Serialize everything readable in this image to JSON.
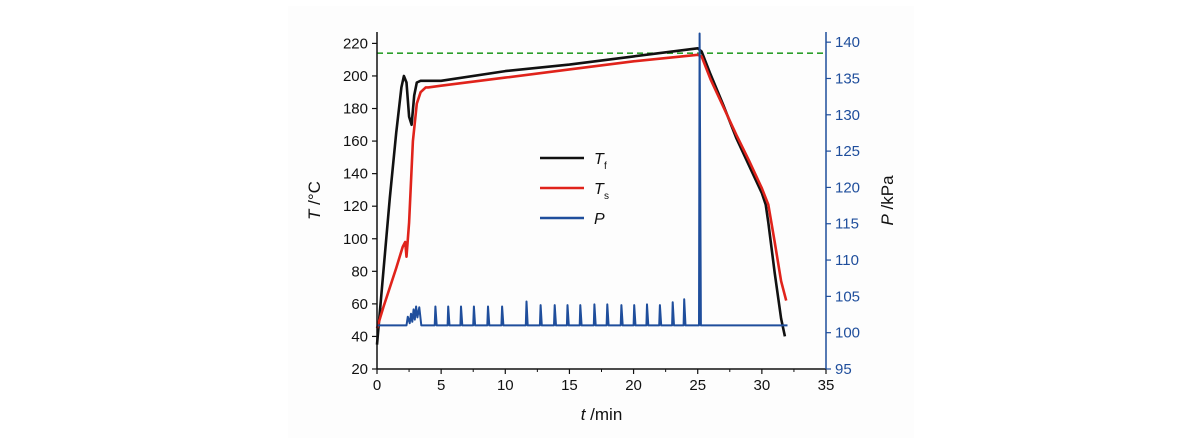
{
  "chart_data": {
    "type": "line",
    "title": "",
    "x_axis": {
      "label_var": "t",
      "label_unit": "/min",
      "range": [
        0,
        35
      ],
      "ticks": [
        0,
        5,
        10,
        15,
        20,
        25,
        30,
        35
      ]
    },
    "y_left": {
      "label_var": "T",
      "label_unit": "/°C",
      "range": [
        20,
        227
      ],
      "ticks": [
        20,
        40,
        60,
        80,
        100,
        120,
        140,
        160,
        180,
        200,
        220
      ]
    },
    "y_right": {
      "label_var": "P",
      "label_unit": "/kPa",
      "range": [
        95,
        141.4
      ],
      "ticks": [
        95,
        100,
        105,
        110,
        115,
        120,
        125,
        130,
        135,
        140
      ],
      "color": "#1f4e9c"
    },
    "reference_line": {
      "axis": "left",
      "y": 214,
      "color": "#2ca02c",
      "style": "dashed"
    },
    "legend": {
      "placement": "center",
      "entries": [
        {
          "var": "T",
          "sub": "f",
          "color": "#111111"
        },
        {
          "var": "T",
          "sub": "s",
          "color": "#e0231b"
        },
        {
          "var": "P",
          "sub": "",
          "color": "#1f4e9c"
        }
      ]
    },
    "series": [
      {
        "name": "Tf",
        "axis": "left",
        "color": "#111111",
        "points": [
          [
            0,
            35
          ],
          [
            0.5,
            80
          ],
          [
            1,
            125
          ],
          [
            1.5,
            165
          ],
          [
            1.9,
            193
          ],
          [
            2.1,
            200
          ],
          [
            2.3,
            196
          ],
          [
            2.5,
            175
          ],
          [
            2.7,
            170
          ],
          [
            2.9,
            188
          ],
          [
            3.1,
            196
          ],
          [
            3.4,
            197
          ],
          [
            4,
            197
          ],
          [
            5,
            197
          ],
          [
            10,
            203
          ],
          [
            15,
            207
          ],
          [
            20,
            212
          ],
          [
            25,
            217
          ],
          [
            25.3,
            215
          ],
          [
            26,
            201
          ],
          [
            27,
            182
          ],
          [
            28,
            162
          ],
          [
            29,
            145
          ],
          [
            30,
            128
          ],
          [
            30.3,
            121
          ],
          [
            30.5,
            110
          ],
          [
            31,
            79
          ],
          [
            31.5,
            51
          ],
          [
            31.8,
            40
          ]
        ]
      },
      {
        "name": "Ts",
        "axis": "left",
        "color": "#e0231b",
        "points": [
          [
            0,
            45
          ],
          [
            0.5,
            58
          ],
          [
            1,
            70
          ],
          [
            1.5,
            82
          ],
          [
            2,
            95
          ],
          [
            2.2,
            98
          ],
          [
            2.3,
            89
          ],
          [
            2.5,
            110
          ],
          [
            2.8,
            160
          ],
          [
            3.1,
            183
          ],
          [
            3.4,
            190
          ],
          [
            3.8,
            193
          ],
          [
            4,
            193
          ],
          [
            5,
            194
          ],
          [
            10,
            199
          ],
          [
            15,
            204
          ],
          [
            20,
            209
          ],
          [
            25,
            213
          ],
          [
            25.3,
            212
          ],
          [
            26,
            198
          ],
          [
            27,
            181
          ],
          [
            28,
            164
          ],
          [
            29,
            148
          ],
          [
            30,
            131
          ],
          [
            30.5,
            121
          ],
          [
            31,
            98
          ],
          [
            31.5,
            74
          ],
          [
            31.9,
            62
          ]
        ]
      },
      {
        "name": "P",
        "axis": "right",
        "color": "#1f4e9c",
        "baseline": 101,
        "points": [
          [
            0,
            101
          ],
          [
            2.3,
            101
          ],
          [
            2.4,
            102.2
          ],
          [
            2.55,
            101.3
          ],
          [
            2.65,
            102.6
          ],
          [
            2.75,
            101.5
          ],
          [
            2.85,
            103.2
          ],
          [
            2.95,
            101.8
          ],
          [
            3.05,
            103.6
          ],
          [
            3.15,
            102.1
          ],
          [
            3.3,
            103.5
          ],
          [
            3.45,
            101
          ],
          [
            4.5,
            101
          ],
          [
            4.55,
            103.6
          ],
          [
            4.65,
            101
          ],
          [
            5.5,
            101
          ],
          [
            5.55,
            103.6
          ],
          [
            5.65,
            101
          ],
          [
            6.5,
            101
          ],
          [
            6.55,
            103.6
          ],
          [
            6.65,
            101
          ],
          [
            7.5,
            101
          ],
          [
            7.55,
            103.6
          ],
          [
            7.65,
            101
          ],
          [
            8.6,
            101
          ],
          [
            8.65,
            103.6
          ],
          [
            8.75,
            101
          ],
          [
            9.7,
            101
          ],
          [
            9.75,
            103.6
          ],
          [
            9.85,
            101
          ],
          [
            11.6,
            101
          ],
          [
            11.65,
            104.3
          ],
          [
            11.75,
            101
          ],
          [
            12.7,
            101
          ],
          [
            12.75,
            103.8
          ],
          [
            12.85,
            101
          ],
          [
            13.8,
            101
          ],
          [
            13.85,
            103.8
          ],
          [
            13.95,
            101
          ],
          [
            14.8,
            101
          ],
          [
            14.85,
            103.8
          ],
          [
            14.95,
            101
          ],
          [
            15.8,
            101
          ],
          [
            15.85,
            103.8
          ],
          [
            15.95,
            101
          ],
          [
            16.9,
            101
          ],
          [
            16.95,
            103.9
          ],
          [
            17.05,
            101
          ],
          [
            17.9,
            101
          ],
          [
            17.95,
            103.9
          ],
          [
            18.05,
            101
          ],
          [
            19,
            101
          ],
          [
            19.05,
            103.8
          ],
          [
            19.15,
            101
          ],
          [
            20,
            101
          ],
          [
            20.05,
            103.8
          ],
          [
            20.15,
            101
          ],
          [
            21,
            101
          ],
          [
            21.05,
            103.9
          ],
          [
            21.15,
            101
          ],
          [
            22,
            101
          ],
          [
            22.05,
            103.8
          ],
          [
            22.15,
            101
          ],
          [
            23,
            101
          ],
          [
            23.05,
            104.2
          ],
          [
            23.15,
            101
          ],
          [
            23.9,
            101
          ],
          [
            23.95,
            104.6
          ],
          [
            24.05,
            101
          ],
          [
            25.1,
            101
          ],
          [
            25.15,
            141.2
          ],
          [
            25.25,
            101
          ],
          [
            32,
            101
          ]
        ]
      }
    ]
  }
}
